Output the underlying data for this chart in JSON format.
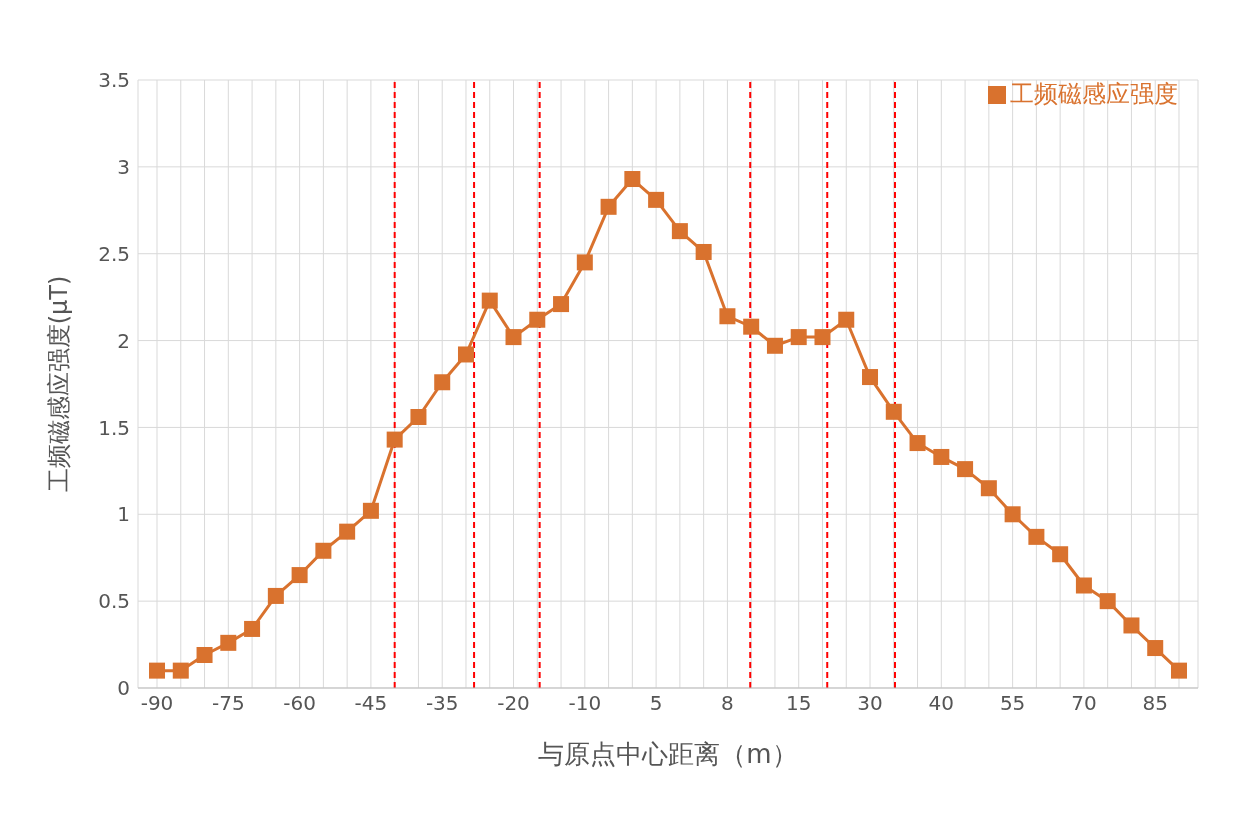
{
  "chart_data": {
    "type": "line",
    "xlabel": "与原点中心距离（m）",
    "ylabel": "工频磁感应强度(μT)",
    "categories": [
      "-90",
      null,
      null,
      "-75",
      null,
      null,
      "-60",
      null,
      null,
      "-45",
      null,
      null,
      "-35",
      null,
      null,
      "-20",
      null,
      null,
      "-10",
      null,
      null,
      "5",
      null,
      null,
      "8",
      null,
      null,
      "15",
      null,
      null,
      "30",
      null,
      null,
      "40",
      null,
      null,
      "55",
      null,
      null,
      "70",
      null,
      null,
      "85",
      null
    ],
    "series": [
      {
        "name": "工频磁感应强度",
        "color": "#d9722e",
        "values": [
          0.1,
          0.1,
          0.19,
          0.26,
          0.34,
          0.53,
          0.65,
          0.79,
          0.9,
          1.02,
          1.43,
          1.56,
          1.76,
          1.92,
          2.23,
          2.02,
          2.12,
          2.21,
          2.45,
          2.77,
          2.93,
          2.81,
          2.63,
          2.51,
          2.14,
          2.08,
          1.97,
          2.02,
          2.02,
          2.12,
          1.79,
          1.59,
          1.41,
          1.33,
          1.26,
          1.15,
          1.0,
          0.87,
          0.77,
          0.59,
          0.5,
          0.36,
          0.23,
          0.1
        ]
      }
    ],
    "ylim": [
      0,
      3.5
    ],
    "yticks": [
      0,
      0.5,
      1,
      1.5,
      2,
      2.5,
      3,
      3.5
    ],
    "grid": true,
    "legend": "top right",
    "marker": "square",
    "line_style": "solid"
  }
}
